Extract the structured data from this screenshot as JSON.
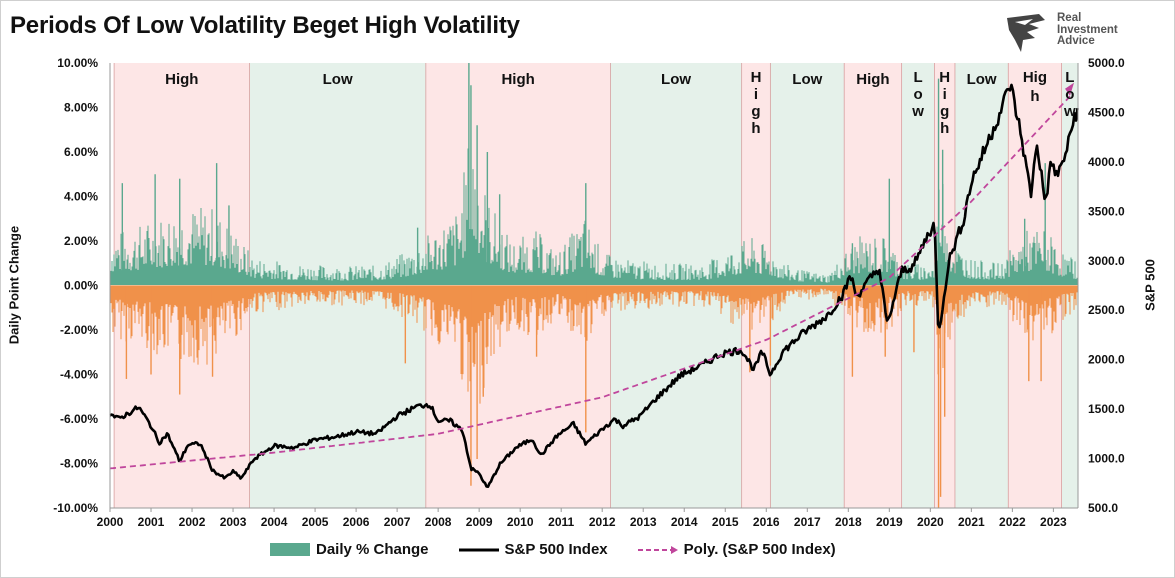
{
  "title": "Periods Of Low Volatility Beget High Volatility",
  "logo": {
    "lines": [
      "Real",
      "Investment",
      "Advice"
    ]
  },
  "chart_data": {
    "type": "bar+line",
    "ylabel_left": "Daily Point Change",
    "ylabel_right": "S&P 500",
    "ylim_left": [
      -10,
      10
    ],
    "ylim_right": [
      500,
      5000
    ],
    "left_ticks": [
      "10.00%",
      "8.00%",
      "6.00%",
      "4.00%",
      "2.00%",
      "0.00%",
      "-2.00%",
      "-4.00%",
      "-6.00%",
      "-8.00%",
      "-10.00%"
    ],
    "right_ticks": [
      "5000.0",
      "4500.0",
      "4000.0",
      "3500.0",
      "3000.0",
      "2500.0",
      "2000.0",
      "1500.0",
      "1000.0",
      "500.0"
    ],
    "x_ticks": [
      "2000",
      "2001",
      "2002",
      "2003",
      "2004",
      "2005",
      "2006",
      "2007",
      "2008",
      "2009",
      "2010",
      "2011",
      "2012",
      "2013",
      "2014",
      "2015",
      "2016",
      "2017",
      "2018",
      "2019",
      "2020",
      "2021",
      "2022",
      "2023"
    ],
    "x_range": [
      2000.0,
      2023.6
    ],
    "regimes": [
      {
        "label": "High",
        "start": 2000.1,
        "end": 2003.4,
        "kind": "high",
        "vertical": false
      },
      {
        "label": "Low",
        "start": 2003.4,
        "end": 2007.7,
        "kind": "low",
        "vertical": false
      },
      {
        "label": "High",
        "start": 2007.7,
        "end": 2012.2,
        "kind": "high",
        "vertical": false
      },
      {
        "label": "Low",
        "start": 2012.2,
        "end": 2015.4,
        "kind": "low",
        "vertical": false
      },
      {
        "label": "High",
        "start": 2015.4,
        "end": 2016.1,
        "kind": "high",
        "vertical": true
      },
      {
        "label": "Low",
        "start": 2016.1,
        "end": 2017.9,
        "kind": "low",
        "vertical": false
      },
      {
        "label": "High",
        "start": 2017.9,
        "end": 2019.3,
        "kind": "high",
        "vertical": false
      },
      {
        "label": "Low",
        "start": 2019.3,
        "end": 2020.1,
        "kind": "low",
        "vertical": true
      },
      {
        "label": "High",
        "start": 2020.1,
        "end": 2020.6,
        "kind": "high",
        "vertical": true
      },
      {
        "label": "Low",
        "start": 2020.6,
        "end": 2021.9,
        "kind": "low",
        "vertical": false
      },
      {
        "label": "High",
        "start": 2021.9,
        "end": 2023.2,
        "kind": "high",
        "vertical": false,
        "split": true
      },
      {
        "label": "Low",
        "start": 2023.2,
        "end": 2023.6,
        "kind": "low",
        "vertical": true
      }
    ],
    "series": [
      {
        "name": "Daily % Change",
        "type": "bar",
        "pos_color": "#5aa88e",
        "neg_color": "#f0914a",
        "volatility_envelope": [
          [
            2000.0,
            2.4
          ],
          [
            2000.5,
            2.6
          ],
          [
            2001.0,
            3.0
          ],
          [
            2001.7,
            3.6
          ],
          [
            2002.5,
            3.6
          ],
          [
            2003.0,
            2.6
          ],
          [
            2003.5,
            1.3
          ],
          [
            2004.5,
            1.0
          ],
          [
            2005.5,
            0.9
          ],
          [
            2006.5,
            0.9
          ],
          [
            2007.3,
            1.6
          ],
          [
            2007.8,
            2.4
          ],
          [
            2008.5,
            3.5
          ],
          [
            2008.8,
            7.5
          ],
          [
            2009.2,
            4.0
          ],
          [
            2009.8,
            2.0
          ],
          [
            2010.4,
            2.5
          ],
          [
            2010.9,
            1.5
          ],
          [
            2011.6,
            3.2
          ],
          [
            2012.0,
            1.5
          ],
          [
            2012.5,
            1.2
          ],
          [
            2013.5,
            1.0
          ],
          [
            2014.5,
            1.0
          ],
          [
            2015.6,
            2.2
          ],
          [
            2016.1,
            1.7
          ],
          [
            2016.6,
            0.8
          ],
          [
            2017.5,
            0.5
          ],
          [
            2018.2,
            2.2
          ],
          [
            2018.9,
            2.3
          ],
          [
            2019.4,
            1.0
          ],
          [
            2020.1,
            1.0
          ],
          [
            2020.25,
            6.5
          ],
          [
            2020.5,
            2.2
          ],
          [
            2021.0,
            1.2
          ],
          [
            2021.7,
            1.0
          ],
          [
            2022.3,
            2.5
          ],
          [
            2022.8,
            2.6
          ],
          [
            2023.2,
            1.6
          ],
          [
            2023.6,
            1.1
          ]
        ],
        "spikes": [
          [
            2000.3,
            4.6
          ],
          [
            2001.1,
            5.0
          ],
          [
            2001.7,
            4.8
          ],
          [
            2002.6,
            5.5
          ],
          [
            2002.9,
            3.6
          ],
          [
            2007.5,
            2.6
          ],
          [
            2008.75,
            11.6
          ],
          [
            2008.8,
            9.0
          ],
          [
            2008.95,
            7.2
          ],
          [
            2009.2,
            6.0
          ],
          [
            2009.5,
            4.1
          ],
          [
            2011.6,
            4.6
          ],
          [
            2018.1,
            1.9
          ],
          [
            2019.0,
            4.8
          ],
          [
            2020.2,
            9.3
          ],
          [
            2020.3,
            6.1
          ],
          [
            2022.3,
            3.0
          ],
          [
            2022.8,
            5.5
          ],
          [
            2000.4,
            -4.2
          ],
          [
            2001.0,
            -4.0
          ],
          [
            2001.7,
            -4.9
          ],
          [
            2002.5,
            -4.1
          ],
          [
            2007.2,
            -3.5
          ],
          [
            2008.8,
            -9.0
          ],
          [
            2008.95,
            -7.8
          ],
          [
            2009.1,
            -5.0
          ],
          [
            2010.4,
            -3.2
          ],
          [
            2011.6,
            -6.6
          ],
          [
            2015.6,
            -3.9
          ],
          [
            2016.1,
            -3.6
          ],
          [
            2018.1,
            -4.1
          ],
          [
            2018.9,
            -3.2
          ],
          [
            2019.6,
            -3.0
          ],
          [
            2020.2,
            -12.0
          ],
          [
            2020.25,
            -9.5
          ],
          [
            2020.35,
            -5.9
          ],
          [
            2022.4,
            -4.3
          ],
          [
            2022.7,
            -4.3
          ]
        ]
      },
      {
        "name": "S&P 500 Index",
        "type": "line",
        "color": "#000000",
        "points": [
          [
            2000.0,
            1455
          ],
          [
            2000.2,
            1400
          ],
          [
            2000.5,
            1470
          ],
          [
            2000.7,
            1520
          ],
          [
            2001.0,
            1330
          ],
          [
            2001.2,
            1160
          ],
          [
            2001.4,
            1250
          ],
          [
            2001.7,
            970
          ],
          [
            2001.9,
            1140
          ],
          [
            2002.2,
            1150
          ],
          [
            2002.5,
            880
          ],
          [
            2002.8,
            800
          ],
          [
            2003.0,
            870
          ],
          [
            2003.2,
            800
          ],
          [
            2003.5,
            990
          ],
          [
            2004.0,
            1130
          ],
          [
            2004.5,
            1110
          ],
          [
            2005.0,
            1190
          ],
          [
            2005.5,
            1220
          ],
          [
            2006.0,
            1270
          ],
          [
            2006.5,
            1250
          ],
          [
            2007.0,
            1430
          ],
          [
            2007.5,
            1530
          ],
          [
            2007.8,
            1550
          ],
          [
            2008.0,
            1380
          ],
          [
            2008.3,
            1380
          ],
          [
            2008.6,
            1280
          ],
          [
            2008.8,
            900
          ],
          [
            2009.0,
            850
          ],
          [
            2009.2,
            700
          ],
          [
            2009.5,
            940
          ],
          [
            2009.9,
            1110
          ],
          [
            2010.3,
            1200
          ],
          [
            2010.5,
            1030
          ],
          [
            2010.9,
            1230
          ],
          [
            2011.3,
            1350
          ],
          [
            2011.6,
            1150
          ],
          [
            2011.9,
            1260
          ],
          [
            2012.3,
            1400
          ],
          [
            2012.5,
            1330
          ],
          [
            2012.9,
            1420
          ],
          [
            2013.3,
            1600
          ],
          [
            2013.9,
            1840
          ],
          [
            2014.5,
            1960
          ],
          [
            2014.9,
            2060
          ],
          [
            2015.4,
            2100
          ],
          [
            2015.7,
            1900
          ],
          [
            2015.9,
            2080
          ],
          [
            2016.1,
            1850
          ],
          [
            2016.4,
            2080
          ],
          [
            2016.9,
            2270
          ],
          [
            2017.5,
            2450
          ],
          [
            2017.9,
            2680
          ],
          [
            2018.05,
            2860
          ],
          [
            2018.2,
            2640
          ],
          [
            2018.5,
            2800
          ],
          [
            2018.75,
            2930
          ],
          [
            2018.95,
            2350
          ],
          [
            2019.3,
            2900
          ],
          [
            2019.6,
            2950
          ],
          [
            2019.9,
            3230
          ],
          [
            2020.1,
            3380
          ],
          [
            2020.2,
            2240
          ],
          [
            2020.45,
            3000
          ],
          [
            2020.8,
            3400
          ],
          [
            2021.0,
            3800
          ],
          [
            2021.4,
            4200
          ],
          [
            2021.7,
            4500
          ],
          [
            2021.95,
            4790
          ],
          [
            2022.2,
            4300
          ],
          [
            2022.45,
            3670
          ],
          [
            2022.6,
            4200
          ],
          [
            2022.8,
            3580
          ],
          [
            2022.95,
            4000
          ],
          [
            2023.1,
            3850
          ],
          [
            2023.35,
            4150
          ],
          [
            2023.5,
            4450
          ],
          [
            2023.6,
            4530
          ]
        ]
      },
      {
        "name": "Poly. (S&P 500 Index)",
        "type": "trendline",
        "color": "#c0469c",
        "points": [
          [
            2000.0,
            900
          ],
          [
            2004.0,
            1060
          ],
          [
            2008.0,
            1250
          ],
          [
            2012.0,
            1620
          ],
          [
            2016.0,
            2200
          ],
          [
            2019.0,
            2830
          ],
          [
            2021.0,
            3600
          ],
          [
            2023.6,
            4750
          ]
        ]
      }
    ],
    "legend": [
      "Daily % Change",
      "S&P 500 Index",
      "Poly. (S&P 500 Index)"
    ],
    "legend_position": "bottom",
    "grid": false
  }
}
